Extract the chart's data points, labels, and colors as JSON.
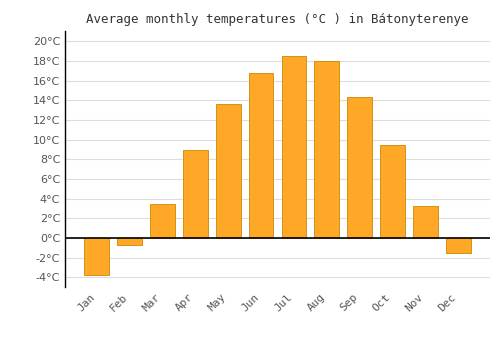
{
  "months": [
    "Jan",
    "Feb",
    "Mar",
    "Apr",
    "May",
    "Jun",
    "Jul",
    "Aug",
    "Sep",
    "Oct",
    "Nov",
    "Dec"
  ],
  "values": [
    -3.8,
    -0.7,
    3.4,
    8.9,
    13.6,
    16.8,
    18.5,
    18.0,
    14.3,
    9.4,
    3.2,
    -1.5
  ],
  "bar_color": "#FFA726",
  "bar_edge_color": "#CC8800",
  "title": "Average monthly temperatures (°C ) in Bátonyterenye",
  "ylim": [
    -5,
    21
  ],
  "yticks": [
    -4,
    -2,
    0,
    2,
    4,
    6,
    8,
    10,
    12,
    14,
    16,
    18,
    20
  ],
  "background_color": "#ffffff",
  "grid_color": "#dddddd",
  "title_fontsize": 9,
  "tick_fontsize": 8,
  "font_family": "monospace"
}
